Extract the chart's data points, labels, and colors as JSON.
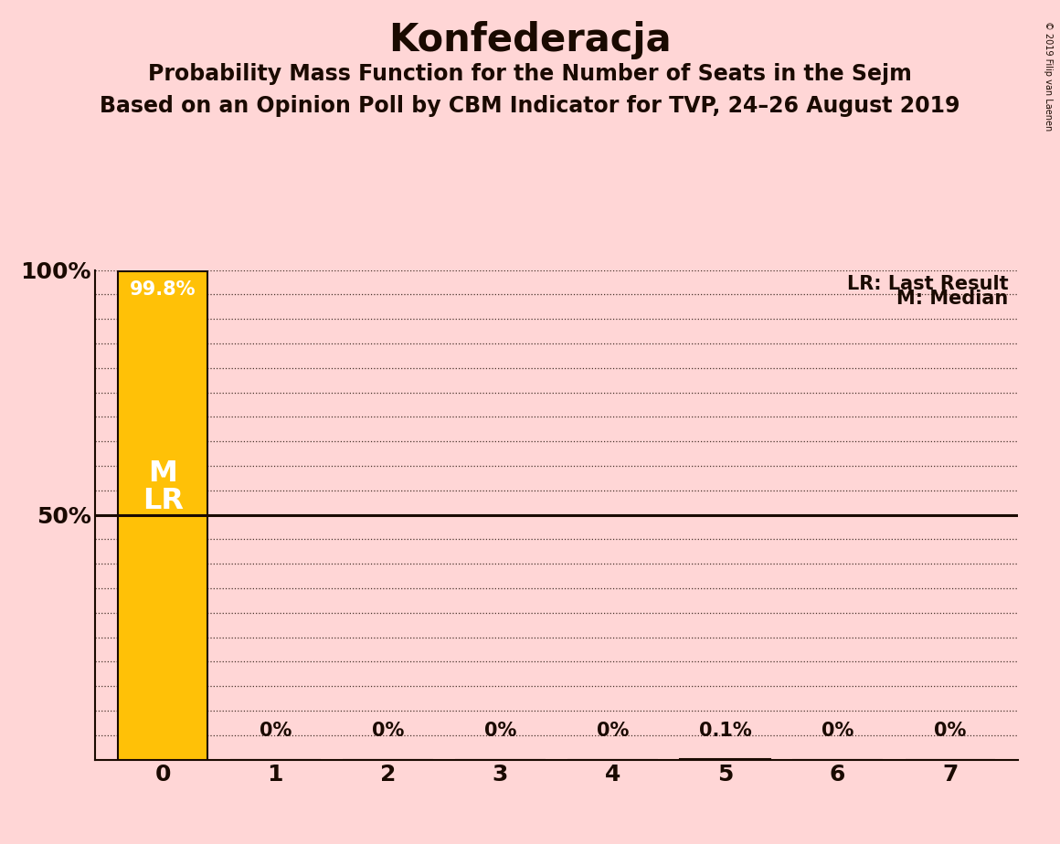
{
  "title": "Konfederacja",
  "subtitle1": "Probability Mass Function for the Number of Seats in the Sejm",
  "subtitle2": "Based on an Opinion Poll by CBM Indicator for TVP, 24–26 August 2019",
  "copyright": "© 2019 Filip van Laenen",
  "categories": [
    0,
    1,
    2,
    3,
    4,
    5,
    6,
    7
  ],
  "values": [
    0.998,
    0.0,
    0.0,
    0.0,
    0.0,
    0.001,
    0.0,
    0.0
  ],
  "bar_labels": [
    "99.8%",
    "0%",
    "0%",
    "0%",
    "0%",
    "0.1%",
    "0%",
    "0%"
  ],
  "bar_color": "#FFC107",
  "bar_edgecolor": "#1a0a00",
  "background_color": "#FFD6D6",
  "median": 0,
  "last_result": 0,
  "ylim": [
    0,
    1.0
  ],
  "yticks": [
    0.5,
    1.0
  ],
  "ytick_labels": [
    "50%",
    "100%"
  ],
  "title_fontsize": 30,
  "subtitle_fontsize": 17,
  "bar_label_fontsize": 15,
  "axis_fontsize": 18,
  "legend_fontsize": 15,
  "marker_label_fontsize": 23,
  "lr_label": "LR: Last Result",
  "m_label": "M: Median",
  "m_text": "M",
  "lr_text": "LR",
  "grid_ticks": [
    0.05,
    0.1,
    0.15,
    0.2,
    0.25,
    0.3,
    0.35,
    0.4,
    0.45,
    0.55,
    0.6,
    0.65,
    0.7,
    0.75,
    0.8,
    0.85,
    0.9,
    0.95
  ]
}
